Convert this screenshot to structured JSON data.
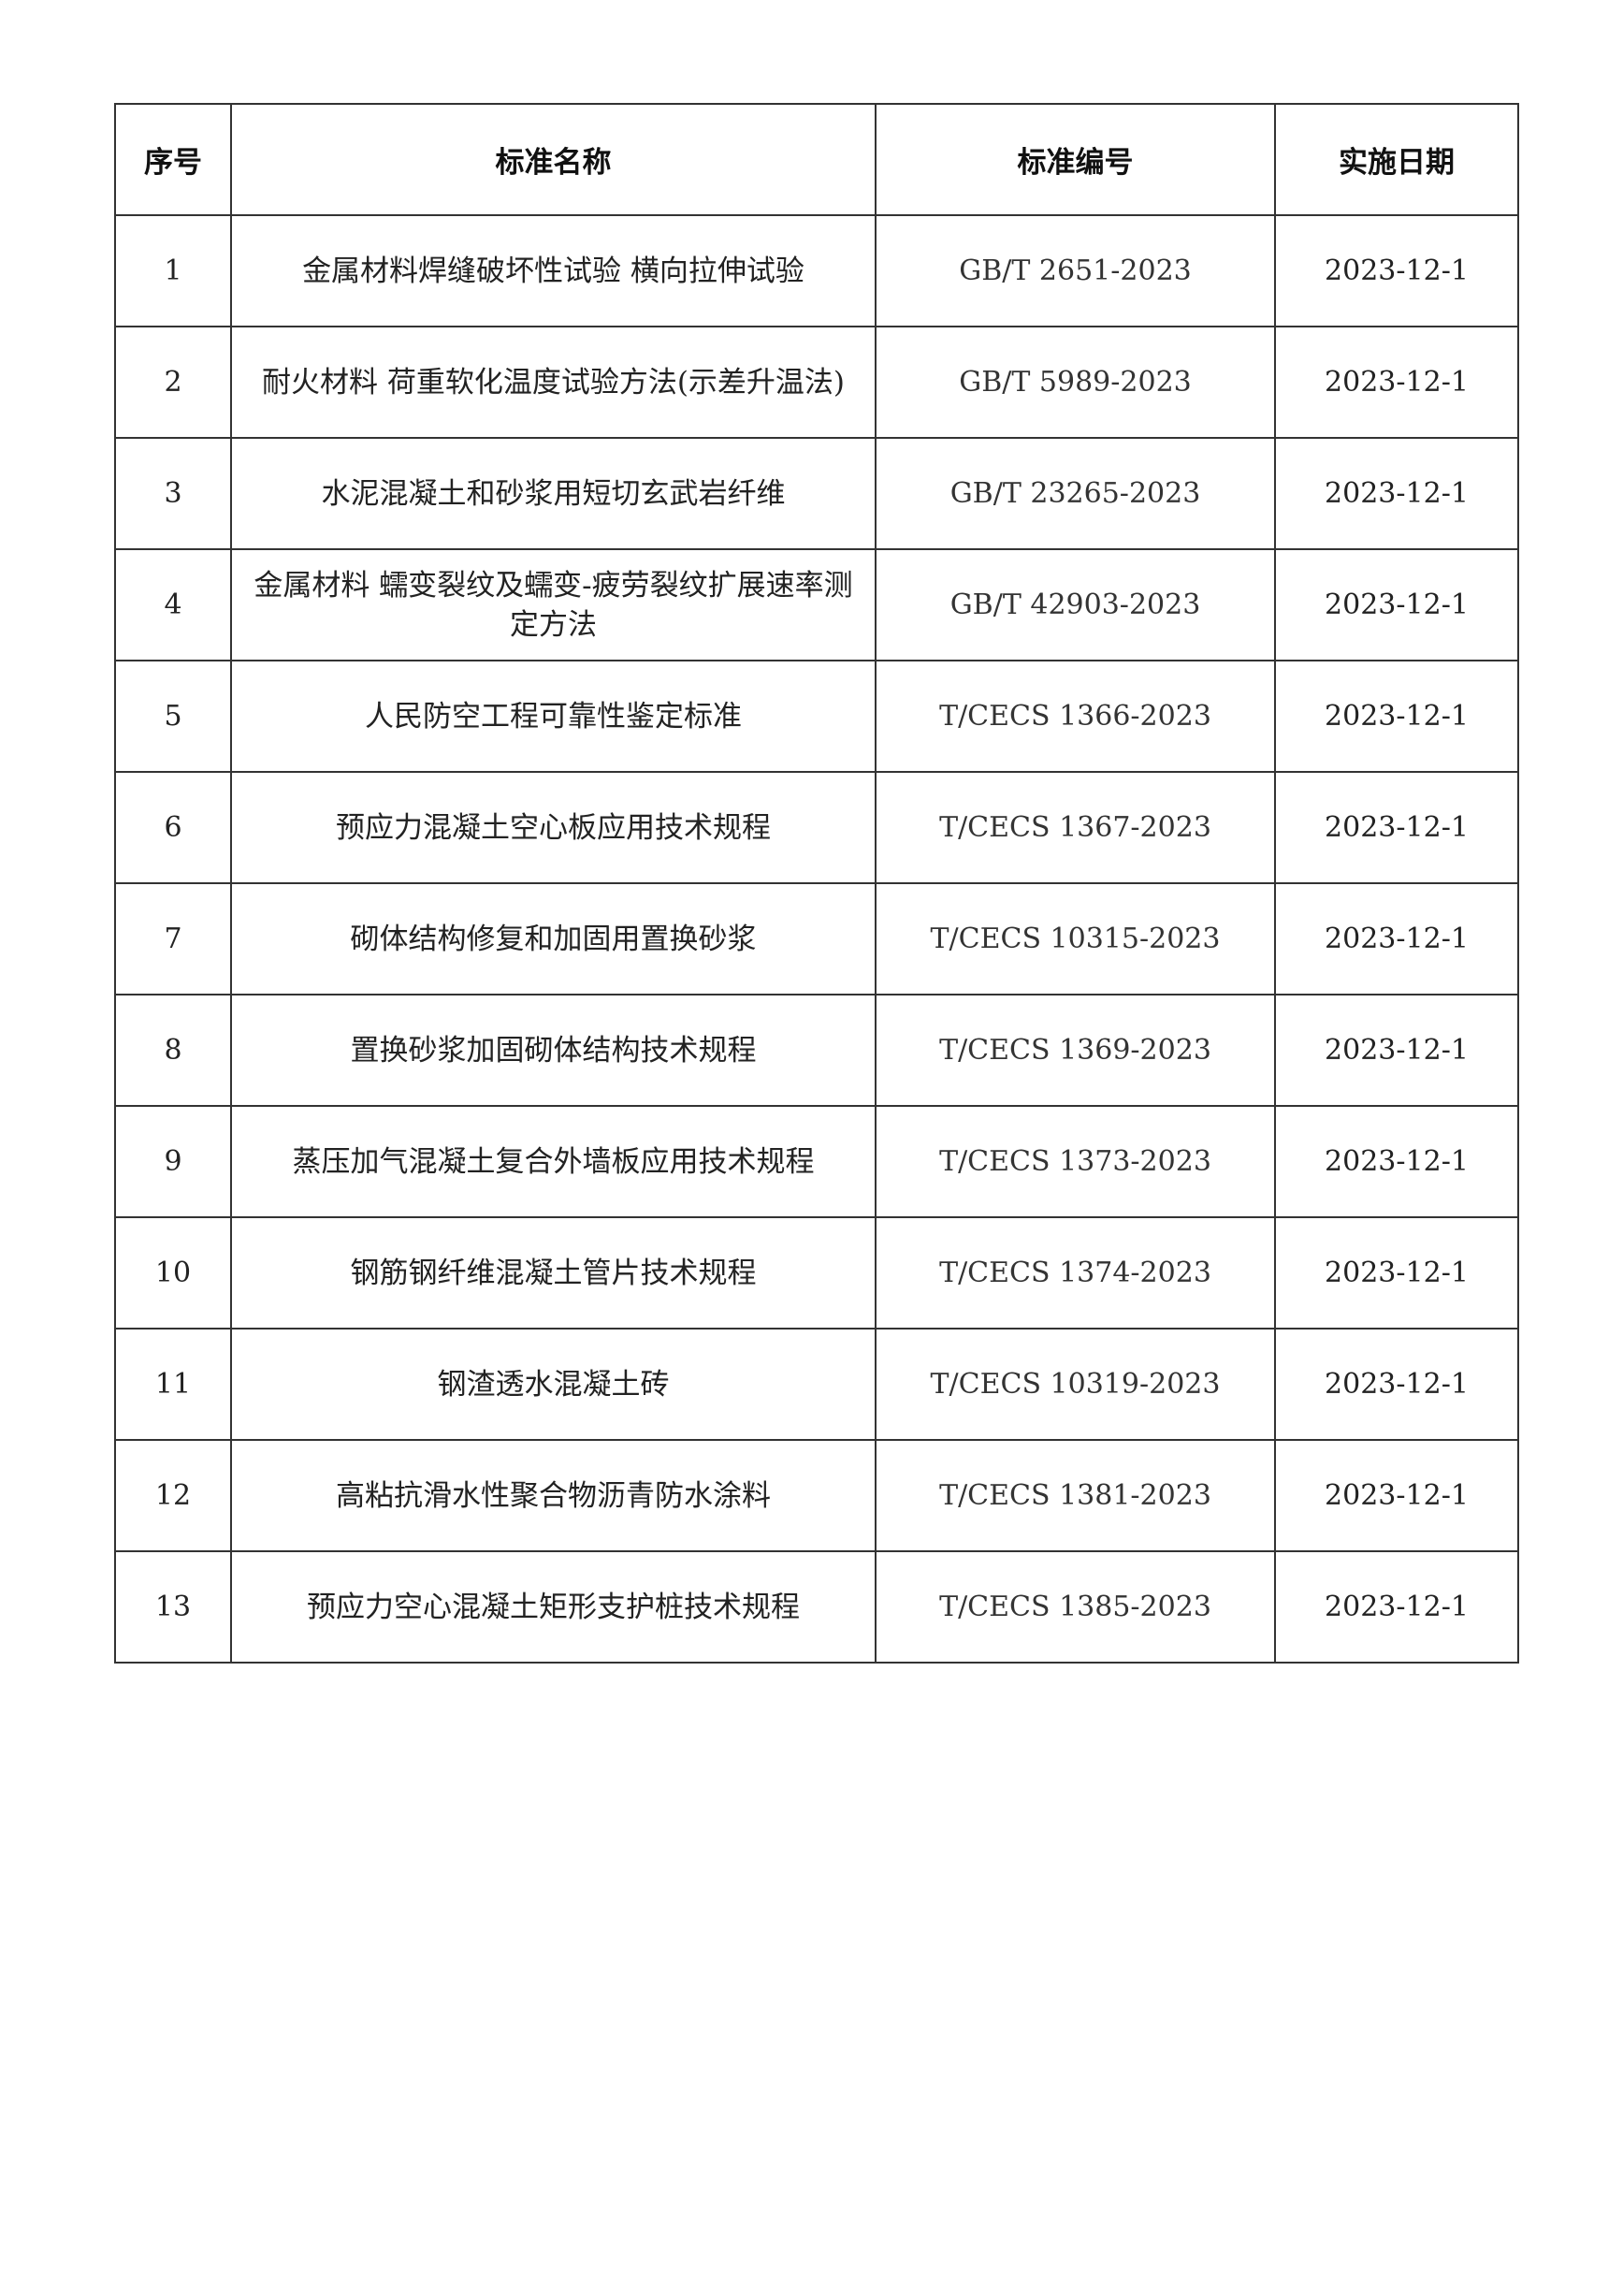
{
  "table": {
    "headers": [
      "序号",
      "标准名称",
      "标准编号",
      "实施日期"
    ],
    "rows": [
      {
        "no": "1",
        "name": "金属材料焊缝破坏性试验 横向拉伸试验",
        "code": "GB/T 2651-2023",
        "date": "2023-12-1"
      },
      {
        "no": "2",
        "name": "耐火材料 荷重软化温度试验方法(示差升温法)",
        "code": "GB/T 5989-2023",
        "date": "2023-12-1"
      },
      {
        "no": "3",
        "name": "水泥混凝土和砂浆用短切玄武岩纤维",
        "code": "GB/T 23265-2023",
        "date": "2023-12-1"
      },
      {
        "no": "4",
        "name": "金属材料 蠕变裂纹及蠕变-疲劳裂纹扩展速率测定方法",
        "code": "GB/T 42903-2023",
        "date": "2023-12-1"
      },
      {
        "no": "5",
        "name": "人民防空工程可靠性鉴定标准",
        "code": "T/CECS 1366-2023",
        "date": "2023-12-1"
      },
      {
        "no": "6",
        "name": "预应力混凝土空心板应用技术规程",
        "code": "T/CECS 1367-2023",
        "date": "2023-12-1"
      },
      {
        "no": "7",
        "name": "砌体结构修复和加固用置换砂浆",
        "code": "T/CECS 10315-2023",
        "date": "2023-12-1"
      },
      {
        "no": "8",
        "name": "置换砂浆加固砌体结构技术规程",
        "code": "T/CECS 1369-2023",
        "date": "2023-12-1"
      },
      {
        "no": "9",
        "name": "蒸压加气混凝土复合外墙板应用技术规程",
        "code": "T/CECS 1373-2023",
        "date": "2023-12-1"
      },
      {
        "no": "10",
        "name": "钢筋钢纤维混凝土管片技术规程",
        "code": "T/CECS 1374-2023",
        "date": "2023-12-1"
      },
      {
        "no": "11",
        "name": "钢渣透水混凝土砖",
        "code": "T/CECS 10319-2023",
        "date": "2023-12-1"
      },
      {
        "no": "12",
        "name": "高粘抗滑水性聚合物沥青防水涂料",
        "code": "T/CECS 1381-2023",
        "date": "2023-12-1"
      },
      {
        "no": "13",
        "name": "预应力空心混凝土矩形支护桩技术规程",
        "code": "T/CECS 1385-2023",
        "date": "2023-12-1"
      }
    ]
  }
}
